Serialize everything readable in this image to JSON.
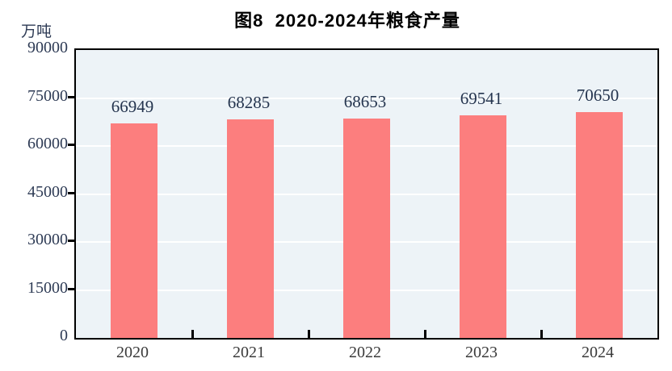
{
  "chart_data": {
    "type": "bar",
    "title": "图8  2020-2024年粮食产量",
    "unit": "万吨",
    "categories": [
      "2020",
      "2021",
      "2022",
      "2023",
      "2024"
    ],
    "values": [
      66949,
      68285,
      68653,
      69541,
      70650
    ],
    "value_labels": [
      "66949",
      "68285",
      "68653",
      "69541",
      "70650"
    ],
    "xlabel": "",
    "ylabel": "万吨",
    "ylim": [
      0,
      90000
    ],
    "ytick_step": 15000,
    "ytick_labels": [
      "0",
      "15000",
      "30000",
      "45000",
      "60000",
      "75000",
      "90000"
    ],
    "grid": true,
    "legend_position": "none",
    "colors": {
      "bar": "#fc7e7e",
      "plot_background": "#edf3f7",
      "gridline": "#ffffff",
      "axis_frame": "#000000",
      "tick_text": "#2e3b55",
      "title_text": "#000000"
    }
  }
}
